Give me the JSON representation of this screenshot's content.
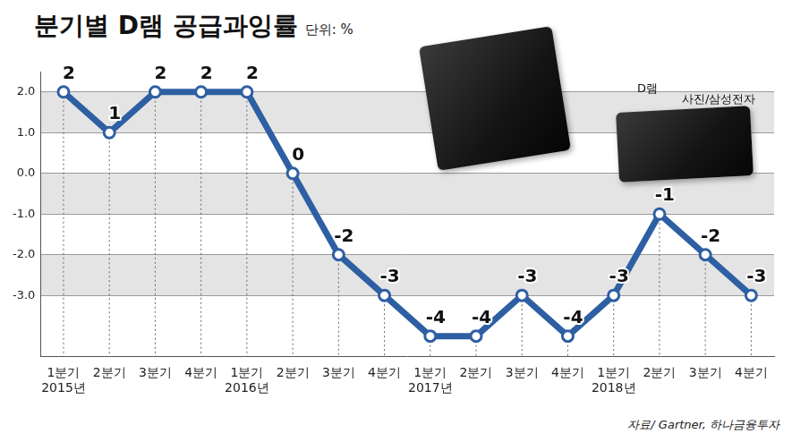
{
  "chart_data": {
    "type": "line",
    "title": "분기별 D램 공급과잉률",
    "subtitle": "단위: %",
    "source": "자료/ Gartner, 하나금융투자",
    "categories": [
      "1분기\n2015년",
      "2분기",
      "3분기",
      "4분기",
      "1분기\n2016년",
      "2분기",
      "3분기",
      "4분기",
      "1분기\n2017년",
      "2분기",
      "3분기",
      "4분기",
      "1분기\n2018년",
      "2분기",
      "3분기",
      "4분기"
    ],
    "values": [
      2,
      1,
      2,
      2,
      2,
      0,
      -2,
      -3,
      -4,
      -4,
      -3,
      -4,
      -3,
      -1,
      -2,
      -3
    ],
    "color": "#2e5fa3",
    "marker": "circle",
    "data_labels": true,
    "grid": true,
    "ylim": [
      -4.5,
      2.5
    ],
    "yticks": [
      {
        "value": 2,
        "label": "2.0"
      },
      {
        "value": 1,
        "label": "1.0"
      },
      {
        "value": 0,
        "label": "0.0"
      },
      {
        "value": -1,
        "label": "-1.0"
      },
      {
        "value": -2,
        "label": "-2.0"
      },
      {
        "value": -3,
        "label": "-3.0"
      }
    ],
    "annotations": [
      {
        "text": "D램"
      },
      {
        "text": "사진/삼성전자"
      }
    ]
  }
}
